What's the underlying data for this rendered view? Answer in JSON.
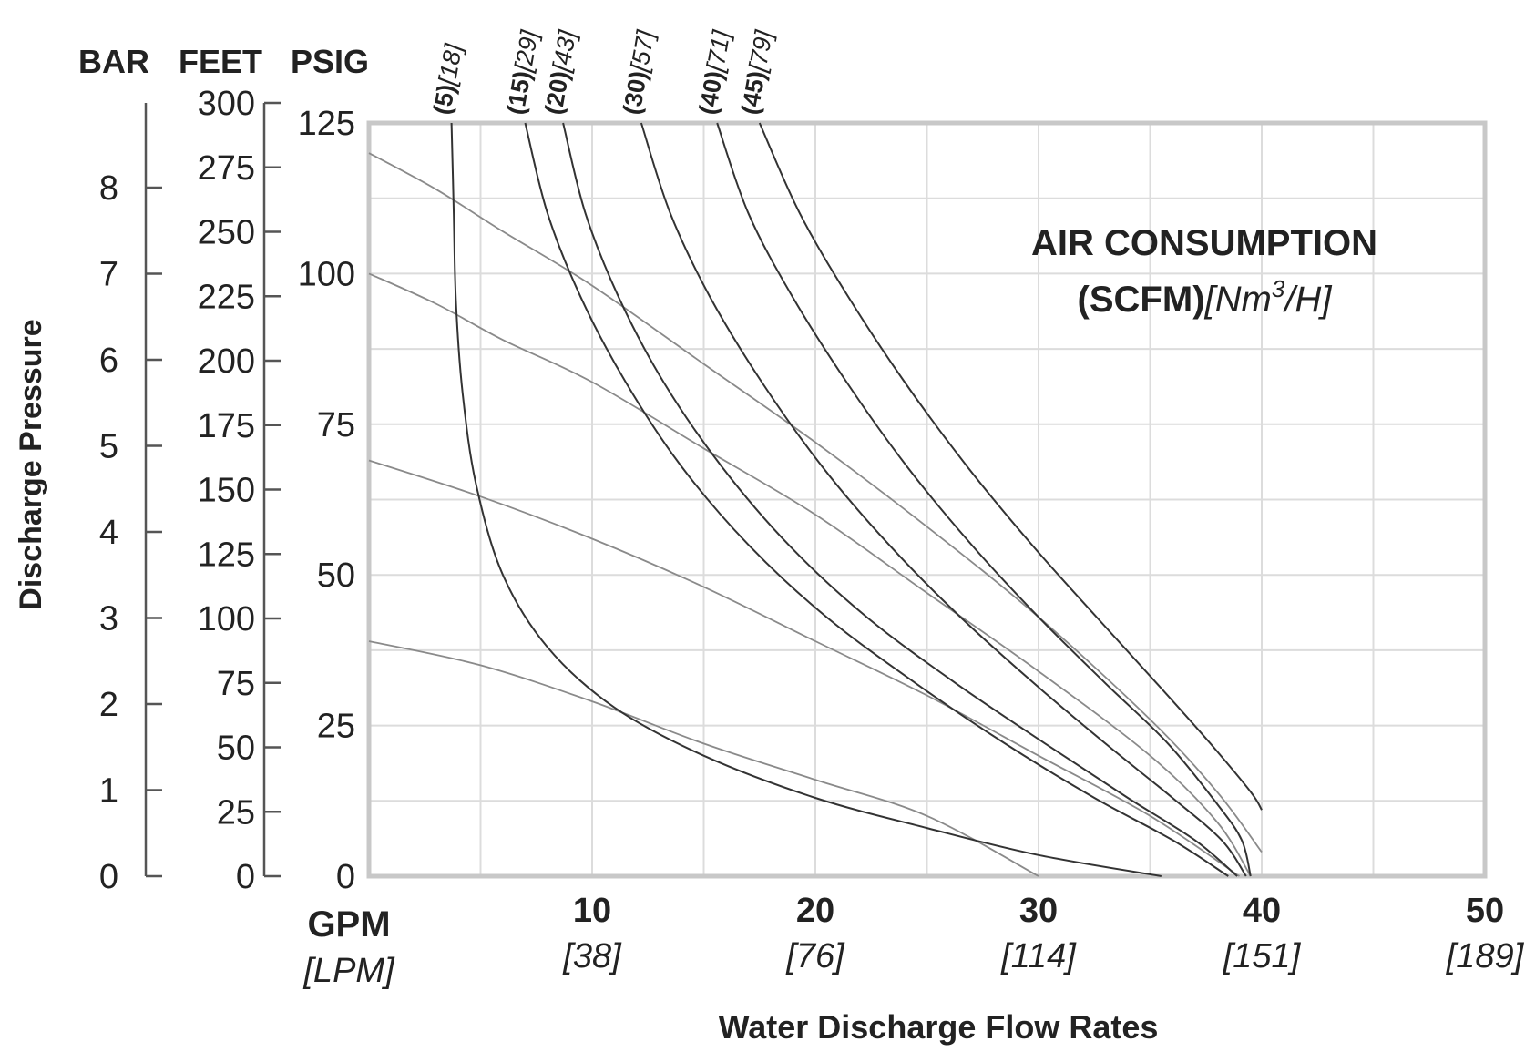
{
  "chart_data": {
    "type": "line",
    "title": "",
    "xlabel": "Water Discharge Flow Rates",
    "ylabel": "Discharge Pressure",
    "xlim": [
      0,
      50
    ],
    "ylim": [
      0,
      125
    ],
    "grid": true,
    "x_unit_label": "GPM",
    "x_alt_unit_label": "[LPM]",
    "x_ticks": [
      {
        "value": 10,
        "label": "10",
        "alt": "[38]"
      },
      {
        "value": 20,
        "label": "20",
        "alt": "[76]"
      },
      {
        "value": 30,
        "label": "30",
        "alt": "[114]"
      },
      {
        "value": 40,
        "label": "40",
        "alt": "[151]"
      },
      {
        "value": 50,
        "label": "50",
        "alt": "[189]"
      }
    ],
    "y_axes": [
      {
        "unit": "BAR",
        "ticks": [
          "0",
          "1",
          "2",
          "3",
          "4",
          "5",
          "6",
          "7",
          "8"
        ]
      },
      {
        "unit": "FEET",
        "ticks": [
          "0",
          "25",
          "50",
          "75",
          "100",
          "125",
          "150",
          "175",
          "200",
          "225",
          "250",
          "275",
          "300"
        ]
      },
      {
        "unit": "PSIG",
        "ticks": [
          "0",
          "25",
          "50",
          "75",
          "100",
          "125"
        ]
      }
    ],
    "legend": {
      "title": "AIR CONSUMPTION",
      "subtitle_bold": "(SCFM)",
      "subtitle_italic_pre": "[Nm",
      "subtitle_sup": "3",
      "subtitle_italic_post": "/H]",
      "placement": "top-right"
    },
    "consumption_curves": [
      {
        "label_bold": "(5)",
        "label_italic": "[18]",
        "points": [
          [
            3.7,
            125
          ],
          [
            3.8,
            110
          ],
          [
            3.9,
            95
          ],
          [
            4.2,
            80
          ],
          [
            4.8,
            65
          ],
          [
            6,
            50
          ],
          [
            8,
            38
          ],
          [
            11,
            28
          ],
          [
            15,
            20
          ],
          [
            20,
            13
          ],
          [
            25,
            8
          ],
          [
            30,
            3.5
          ],
          [
            35.5,
            0
          ]
        ]
      },
      {
        "label_bold": "(15)",
        "label_italic": "[29]",
        "points": [
          [
            7,
            125
          ],
          [
            8,
            110
          ],
          [
            9.5,
            96
          ],
          [
            11.5,
            82
          ],
          [
            14,
            68
          ],
          [
            17,
            55
          ],
          [
            20.5,
            43
          ],
          [
            24.5,
            32
          ],
          [
            28.5,
            22
          ],
          [
            32.5,
            13
          ],
          [
            36,
            6
          ],
          [
            38.5,
            0
          ]
        ]
      },
      {
        "label_bold": "(20)",
        "label_italic": "[43]",
        "points": [
          [
            8.7,
            125
          ],
          [
            9.7,
            110
          ],
          [
            11.2,
            96
          ],
          [
            13.2,
            82
          ],
          [
            15.8,
            68
          ],
          [
            18.8,
            55
          ],
          [
            22.3,
            43
          ],
          [
            26.3,
            32
          ],
          [
            30.3,
            22
          ],
          [
            34,
            13
          ],
          [
            37,
            6
          ],
          [
            38.9,
            0
          ]
        ]
      },
      {
        "label_bold": "(30)",
        "label_italic": "[57]",
        "points": [
          [
            12.2,
            125
          ],
          [
            13.5,
            110
          ],
          [
            15.3,
            96
          ],
          [
            17.6,
            82
          ],
          [
            20.3,
            68
          ],
          [
            23.3,
            55
          ],
          [
            26.5,
            43
          ],
          [
            29.8,
            32
          ],
          [
            33,
            22
          ],
          [
            36,
            13
          ],
          [
            38.2,
            6
          ],
          [
            39.3,
            0
          ]
        ]
      },
      {
        "label_bold": "(40)",
        "label_italic": "[71]",
        "points": [
          [
            15.6,
            125
          ],
          [
            17,
            110
          ],
          [
            19,
            96
          ],
          [
            21.4,
            82
          ],
          [
            24.1,
            68
          ],
          [
            27,
            55
          ],
          [
            30,
            43
          ],
          [
            33,
            32
          ],
          [
            35.8,
            22
          ],
          [
            38,
            12
          ],
          [
            39.1,
            6
          ],
          [
            39.5,
            0
          ]
        ]
      },
      {
        "label_bold": "(45)",
        "label_italic": "[79]",
        "points": [
          [
            17.5,
            125
          ],
          [
            19.3,
            110
          ],
          [
            21.5,
            96
          ],
          [
            24,
            82
          ],
          [
            26.8,
            68
          ],
          [
            29.7,
            55
          ],
          [
            32.6,
            43
          ],
          [
            35.3,
            32
          ],
          [
            37.7,
            22
          ],
          [
            39.5,
            14
          ],
          [
            40,
            11
          ]
        ]
      }
    ],
    "pressure_curves": [
      {
        "points": [
          [
            0,
            120
          ],
          [
            3,
            114
          ],
          [
            6,
            107
          ],
          [
            10,
            98
          ],
          [
            15,
            85
          ],
          [
            20,
            72
          ],
          [
            25,
            58
          ],
          [
            30,
            43
          ],
          [
            35,
            26
          ],
          [
            38,
            14
          ],
          [
            40,
            4
          ]
        ]
      },
      {
        "points": [
          [
            0,
            100
          ],
          [
            3,
            95
          ],
          [
            6,
            89
          ],
          [
            10,
            82
          ],
          [
            15,
            71
          ],
          [
            20,
            60
          ],
          [
            25,
            47
          ],
          [
            30,
            34
          ],
          [
            35,
            20
          ],
          [
            38,
            9
          ],
          [
            39.5,
            0
          ]
        ]
      },
      {
        "points": [
          [
            0,
            69
          ],
          [
            5,
            63
          ],
          [
            10,
            56
          ],
          [
            15,
            48
          ],
          [
            20,
            39
          ],
          [
            25,
            30
          ],
          [
            30,
            20
          ],
          [
            35,
            10
          ],
          [
            39,
            0
          ]
        ]
      },
      {
        "points": [
          [
            0,
            39
          ],
          [
            5,
            35
          ],
          [
            10,
            29
          ],
          [
            15,
            22
          ],
          [
            20,
            16
          ],
          [
            25,
            10
          ],
          [
            30,
            0
          ]
        ]
      }
    ]
  }
}
